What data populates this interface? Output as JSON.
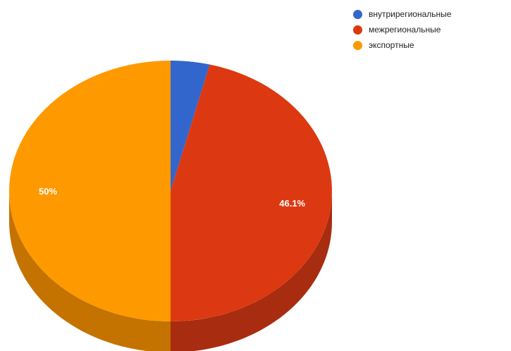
{
  "chart_data": {
    "type": "pie",
    "title": "",
    "categories": [
      "внутрирегиональные",
      "межрегиональные",
      "экспортные"
    ],
    "values": [
      3.9,
      46.1,
      50
    ],
    "unit": "%",
    "data_labels": [
      "",
      "46.1%",
      "50%"
    ],
    "colors": [
      "#3366cc",
      "#dc3912",
      "#ff9900"
    ],
    "side_colors": [
      "#2a4fa0",
      "#a82c0f",
      "#c47300"
    ],
    "legend_position": "top-right",
    "style": "3d"
  }
}
